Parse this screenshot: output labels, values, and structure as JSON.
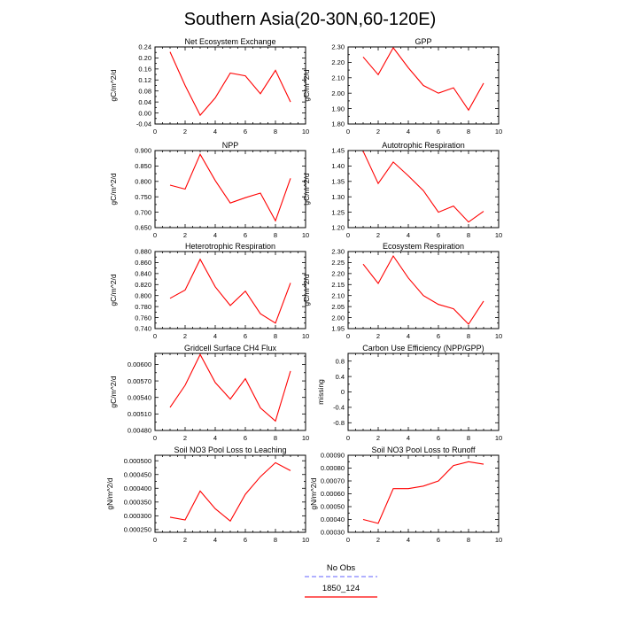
{
  "figure": {
    "title": "Southern Asia(20-30N,60-120E)"
  },
  "legend": [
    {
      "label": "No Obs",
      "color": "#8080ff",
      "dashed": true
    },
    {
      "label": "1850_124",
      "color": "#ff0000",
      "dashed": false
    }
  ],
  "chart_data": [
    {
      "type": "line",
      "title": "Net Ecosystem Exchange",
      "ylabel": "gC/m^2/d",
      "xlim": [
        0,
        10
      ],
      "xticks": [
        0,
        2,
        4,
        6,
        8,
        10
      ],
      "ylim": [
        -0.04,
        0.24
      ],
      "yticks": [
        -0.04,
        0.0,
        0.04,
        0.08,
        0.12,
        0.16,
        0.2,
        0.24
      ],
      "ydecimals": 2,
      "series": [
        {
          "name": "1850_124",
          "color": "#ff0000",
          "x": [
            1,
            2,
            3,
            4,
            5,
            6,
            7,
            8,
            9
          ],
          "values": [
            0.222,
            0.1,
            -0.008,
            0.055,
            0.145,
            0.135,
            0.07,
            0.155,
            0.04
          ]
        }
      ]
    },
    {
      "type": "line",
      "title": "GPP",
      "ylabel": "gC/m^2/d",
      "xlim": [
        0,
        10
      ],
      "xticks": [
        0,
        2,
        4,
        6,
        8,
        10
      ],
      "ylim": [
        1.8,
        2.3
      ],
      "yticks": [
        1.8,
        1.9,
        2.0,
        2.1,
        2.2,
        2.3
      ],
      "ydecimals": 2,
      "series": [
        {
          "name": "1850_124",
          "color": "#ff0000",
          "x": [
            1,
            2,
            3,
            4,
            5,
            6,
            7,
            8,
            9
          ],
          "values": [
            2.235,
            2.12,
            2.295,
            2.165,
            2.05,
            2.0,
            2.035,
            1.89,
            2.065
          ]
        }
      ]
    },
    {
      "type": "line",
      "title": "NPP",
      "ylabel": "gC/m^2/d",
      "xlim": [
        0,
        10
      ],
      "xticks": [
        0,
        2,
        4,
        6,
        8,
        10
      ],
      "ylim": [
        0.65,
        0.9
      ],
      "yticks": [
        0.65,
        0.7,
        0.75,
        0.8,
        0.85,
        0.9
      ],
      "ydecimals": 3,
      "series": [
        {
          "name": "1850_124",
          "color": "#ff0000",
          "x": [
            1,
            2,
            3,
            4,
            5,
            6,
            7,
            8,
            9
          ],
          "values": [
            0.788,
            0.775,
            0.888,
            0.803,
            0.73,
            0.747,
            0.762,
            0.672,
            0.81
          ]
        }
      ]
    },
    {
      "type": "line",
      "title": "Autotrophic Respiration",
      "ylabel": "gC/m^2/d",
      "xlim": [
        0,
        10
      ],
      "xticks": [
        0,
        2,
        4,
        6,
        8,
        10
      ],
      "ylim": [
        1.2,
        1.45
      ],
      "yticks": [
        1.2,
        1.25,
        1.3,
        1.35,
        1.4,
        1.45
      ],
      "ydecimals": 2,
      "series": [
        {
          "name": "1850_124",
          "color": "#ff0000",
          "x": [
            1,
            2,
            3,
            4,
            5,
            6,
            7,
            8,
            9
          ],
          "values": [
            1.448,
            1.343,
            1.413,
            1.368,
            1.32,
            1.25,
            1.27,
            1.218,
            1.253
          ]
        }
      ]
    },
    {
      "type": "line",
      "title": "Heterotrophic Respiration",
      "ylabel": "gC/m^2/d",
      "xlim": [
        0,
        10
      ],
      "xticks": [
        0,
        2,
        4,
        6,
        8,
        10
      ],
      "ylim": [
        0.74,
        0.88
      ],
      "yticks": [
        0.74,
        0.76,
        0.78,
        0.8,
        0.82,
        0.84,
        0.86,
        0.88
      ],
      "ydecimals": 3,
      "series": [
        {
          "name": "1850_124",
          "color": "#ff0000",
          "x": [
            1,
            2,
            3,
            4,
            5,
            6,
            7,
            8,
            9
          ],
          "values": [
            0.795,
            0.81,
            0.866,
            0.816,
            0.782,
            0.808,
            0.767,
            0.75,
            0.823
          ]
        }
      ]
    },
    {
      "type": "line",
      "title": "Ecosystem Respiration",
      "ylabel": "gC/m^2/d",
      "xlim": [
        0,
        10
      ],
      "xticks": [
        0,
        2,
        4,
        6,
        8,
        10
      ],
      "ylim": [
        1.95,
        2.3
      ],
      "yticks": [
        1.95,
        2.0,
        2.05,
        2.1,
        2.15,
        2.2,
        2.25,
        2.3
      ],
      "ydecimals": 2,
      "series": [
        {
          "name": "1850_124",
          "color": "#ff0000",
          "x": [
            1,
            2,
            3,
            4,
            5,
            6,
            7,
            8,
            9
          ],
          "values": [
            2.243,
            2.155,
            2.28,
            2.18,
            2.1,
            2.06,
            2.04,
            1.97,
            2.075
          ]
        }
      ]
    },
    {
      "type": "line",
      "title": "Gridcell Surface CH4 Flux",
      "ylabel": "gC/m^2/d",
      "xlim": [
        0,
        10
      ],
      "xticks": [
        0,
        2,
        4,
        6,
        8,
        10
      ],
      "ylim": [
        0.0048,
        0.0062
      ],
      "yticks": [
        0.0048,
        0.0051,
        0.0054,
        0.0057,
        0.006
      ],
      "ydecimals": 5,
      "series": [
        {
          "name": "1850_124",
          "color": "#ff0000",
          "x": [
            1,
            2,
            3,
            4,
            5,
            6,
            7,
            8,
            9
          ],
          "values": [
            0.00522,
            0.00562,
            0.00618,
            0.00567,
            0.00537,
            0.00574,
            0.00521,
            0.00497,
            0.00588
          ]
        }
      ]
    },
    {
      "type": "line",
      "title": "Carbon Use Efficiency (NPP/GPP)",
      "ylabel": "missing",
      "xlim": [
        0,
        10
      ],
      "xticks": [
        0,
        2,
        4,
        6,
        8,
        10
      ],
      "ylim": [
        -1.0,
        1.0
      ],
      "yticks": [
        -0.8,
        -0.4,
        0,
        0.4,
        0.8
      ],
      "ydecimals": -1,
      "series": []
    },
    {
      "type": "line",
      "title": "Soil NO3 Pool Loss to Leaching",
      "ylabel": "gN/m^2/d",
      "xlim": [
        0,
        10
      ],
      "xticks": [
        0,
        2,
        4,
        6,
        8,
        10
      ],
      "ylim": [
        0.00024,
        0.00052
      ],
      "yticks": [
        0.00025,
        0.0003,
        0.00035,
        0.0004,
        0.00045,
        0.0005
      ],
      "ydecimals": 6,
      "series": [
        {
          "name": "1850_124",
          "color": "#ff0000",
          "x": [
            1,
            2,
            3,
            4,
            5,
            6,
            7,
            8,
            9
          ],
          "values": [
            0.000295,
            0.000285,
            0.00039,
            0.000326,
            0.000281,
            0.000378,
            0.000442,
            0.000493,
            0.000464
          ]
        }
      ]
    },
    {
      "type": "line",
      "title": "Soil NO3 Pool Loss to Runoff",
      "ylabel": "gN/m^2/d",
      "xlim": [
        0,
        10
      ],
      "xticks": [
        0,
        2,
        4,
        6,
        8,
        10
      ],
      "ylim": [
        0.0003,
        0.0009
      ],
      "yticks": [
        0.0003,
        0.0004,
        0.0005,
        0.0006,
        0.0007,
        0.0008,
        0.0009
      ],
      "ydecimals": 5,
      "series": [
        {
          "name": "1850_124",
          "color": "#ff0000",
          "x": [
            1,
            2,
            3,
            4,
            5,
            6,
            7,
            8,
            9
          ],
          "values": [
            0.0004,
            0.00037,
            0.00064,
            0.00064,
            0.00066,
            0.0007,
            0.00082,
            0.00085,
            0.00083
          ]
        }
      ]
    }
  ]
}
